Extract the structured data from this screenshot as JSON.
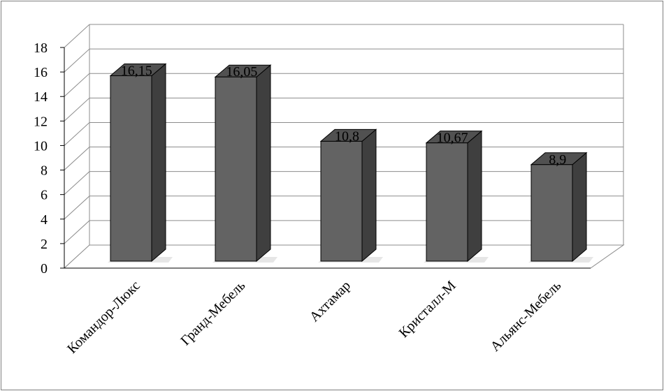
{
  "chart_data": {
    "type": "bar",
    "style": "3d-column",
    "categories": [
      "Командор-Люкс",
      "Гранд-Мебель",
      "Ахтамар",
      "Кристалл-М",
      "Альянс-Мебель"
    ],
    "series": [
      {
        "values": [
          16.15,
          16.05,
          10.8,
          10.67,
          8.9
        ]
      }
    ],
    "data_labels": [
      "16,15",
      "16,05",
      "10,8",
      "10,67",
      "8,9"
    ],
    "y_ticks": [
      "0",
      "2",
      "4",
      "6",
      "8",
      "10",
      "12",
      "14",
      "16",
      "18"
    ],
    "ylim": [
      0,
      18
    ],
    "grid": true,
    "colors": {
      "bar_front": "#636363",
      "bar_side": "#3f3f3f",
      "bar_top": "#515151",
      "gridline": "#8c8c8c",
      "frame": "#7f7f7f"
    }
  }
}
